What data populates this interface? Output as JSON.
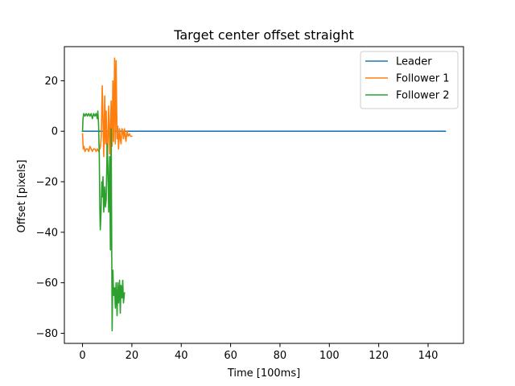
{
  "chart_data": {
    "type": "line",
    "title": "Target center offset straight",
    "xlabel": "Time [100ms]",
    "ylabel": "Offset [pixels]",
    "xlim": [
      -7.35,
      154.35
    ],
    "ylim": [
      -84.0,
      33.5
    ],
    "xticks": [
      0,
      20,
      40,
      60,
      80,
      100,
      120,
      140
    ],
    "yticks": [
      -80,
      -60,
      -40,
      -20,
      0,
      20
    ],
    "xtick_labels": [
      "0",
      "20",
      "40",
      "60",
      "80",
      "100",
      "120",
      "140"
    ],
    "ytick_labels": [
      "−80",
      "−60",
      "−40",
      "−20",
      "0",
      "20"
    ],
    "grid": false,
    "legend_position": "top-right",
    "series": [
      {
        "name": "Leader",
        "color": "#1f77b4",
        "x": [
          0,
          147
        ],
        "y": [
          0,
          0
        ]
      },
      {
        "name": "Follower 1",
        "color": "#ff7f0e",
        "x": [
          0,
          0.3,
          0.6,
          1.0,
          1.5,
          2.0,
          2.5,
          3.0,
          3.5,
          4.0,
          4.5,
          5.0,
          5.5,
          6.0,
          6.5,
          7.0,
          7.3,
          7.6,
          8.0,
          8.3,
          8.6,
          9.0,
          9.3,
          9.6,
          10.0,
          10.3,
          10.6,
          11.0,
          11.3,
          11.6,
          12.0,
          12.3,
          12.6,
          13.0,
          13.3,
          13.6,
          14.0,
          14.3,
          14.6,
          15.0,
          15.3,
          15.6,
          16.0,
          16.3,
          16.6,
          17.0,
          17.3,
          17.6,
          18.0,
          18.5,
          19.0,
          19.5,
          20.0
        ],
        "y": [
          -1,
          -7,
          -6,
          -8,
          -7,
          -7,
          -8,
          -6,
          -7,
          -8,
          -7,
          -7,
          -8,
          -7,
          -8,
          -7,
          -6,
          -2,
          18,
          5,
          -10,
          14,
          -5,
          8,
          -12,
          -3,
          10,
          -9,
          2,
          12,
          -6,
          20,
          -4,
          29,
          -5,
          28,
          -3,
          2,
          -7,
          1,
          -3,
          -5,
          1,
          0,
          -3,
          1,
          -2,
          -4,
          0,
          -2,
          -1,
          -2,
          -2
        ]
      },
      {
        "name": "Follower 2",
        "color": "#2ca02c",
        "x": [
          0,
          0.2,
          0.5,
          1.0,
          1.5,
          2.0,
          2.5,
          3.0,
          3.5,
          4.0,
          4.5,
          5.0,
          5.5,
          6.0,
          6.2,
          6.5,
          6.8,
          7.0,
          7.2,
          7.5,
          7.8,
          8.0,
          8.3,
          8.6,
          9.0,
          9.3,
          9.6,
          10.0,
          10.3,
          10.6,
          11.0,
          11.3,
          11.6,
          12.0,
          12.3,
          12.6,
          13.0,
          13.3,
          13.6,
          14.0,
          14.3,
          14.6,
          15.0,
          15.3,
          15.6,
          16.0,
          16.3,
          16.6,
          17.0
        ],
        "y": [
          0,
          5,
          7,
          6,
          7,
          6,
          7,
          6,
          7,
          5,
          7,
          6,
          7,
          5,
          8,
          3,
          -10,
          -30,
          -39,
          -32,
          -20,
          -26,
          -18,
          -32,
          -22,
          -30,
          -27,
          -5,
          -15,
          -32,
          -10,
          -47,
          1,
          -79,
          -55,
          -65,
          -62,
          -70,
          -60,
          -73,
          -60,
          -68,
          -59,
          -72,
          -61,
          -66,
          -59,
          -68,
          -64
        ]
      }
    ]
  }
}
